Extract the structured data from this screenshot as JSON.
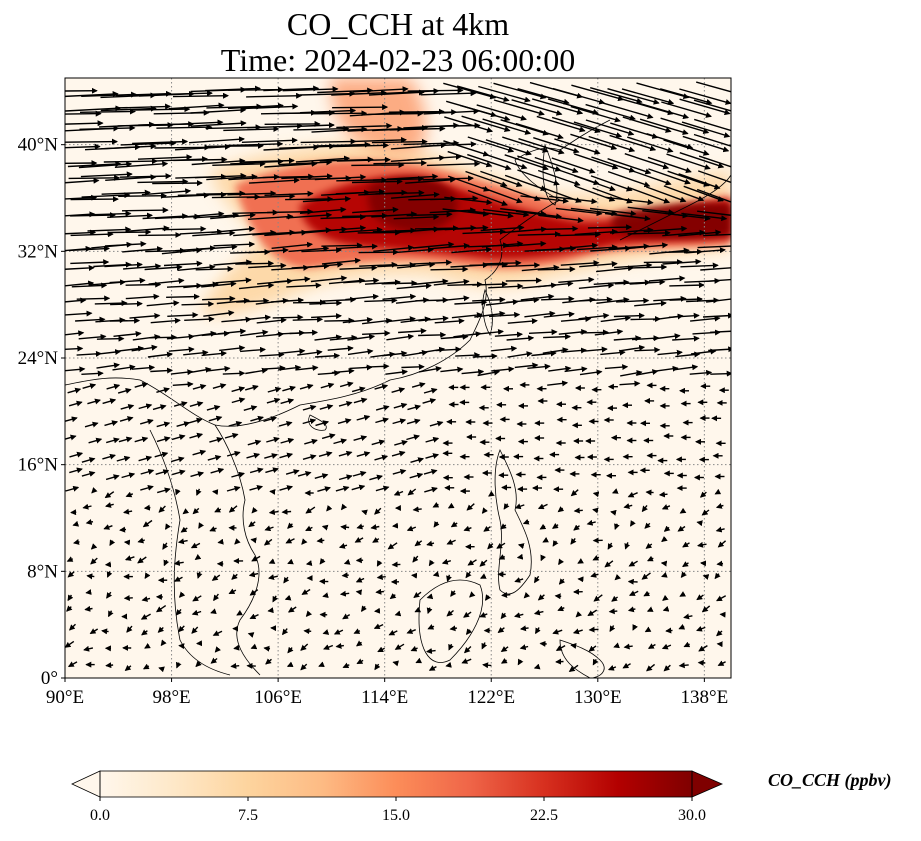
{
  "title": {
    "line1": "CO_CCH at 4km",
    "line2": "Time: 2024-02-23 06:00:00"
  },
  "map": {
    "projection": "PlateCarree",
    "lon_range": [
      90,
      140
    ],
    "lat_range": [
      0,
      45
    ],
    "lon_ticks": [
      "90°E",
      "98°E",
      "106°E",
      "114°E",
      "122°E",
      "130°E",
      "138°E"
    ],
    "lat_ticks": [
      "0°",
      "8°N",
      "16°N",
      "24°N",
      "32°N",
      "40°N"
    ],
    "gridlines": "dotted",
    "field": "CO_CCH concentration, high band along ~30–38°N from ~100°E to 140°E",
    "overlay": "wind vectors (black arrows)"
  },
  "colorbar": {
    "label": "CO_CCH (ppbv)",
    "ticks": [
      "0.0",
      "7.5",
      "15.0",
      "22.5",
      "30.0"
    ],
    "min": 0,
    "max": 30,
    "colormap": "OrRd",
    "extend": "both",
    "colors": [
      "#fff7ec",
      "#fee8c8",
      "#fdd49e",
      "#fdbb84",
      "#fc8d59",
      "#ef6548",
      "#d7301f",
      "#b30000",
      "#7f0000"
    ]
  },
  "colors": {
    "background": "#fff7ec",
    "frame": "#000000",
    "coastline": "#000000",
    "grid": "#888888"
  }
}
